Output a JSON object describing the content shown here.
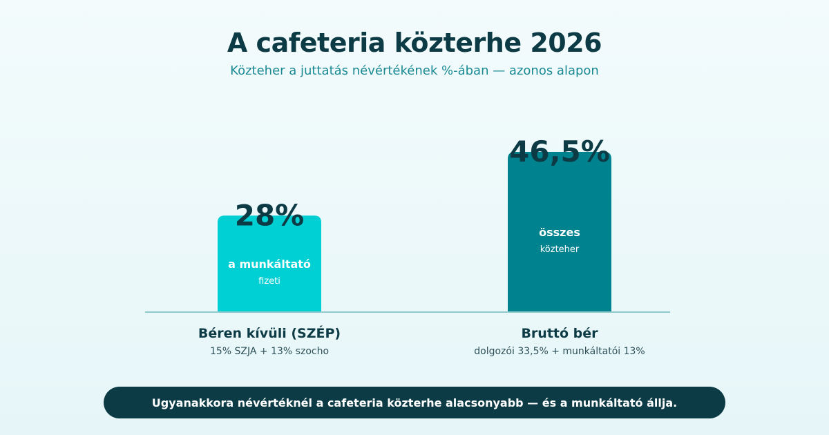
{
  "chart_data": {
    "type": "bar",
    "title": "A cafeteria közterhe 2026",
    "subtitle": "Közteher a juttatás névértékének %-ában — azonos alapon",
    "categories": [
      "Béren kívüli (SZÉP)",
      "Bruttó bér"
    ],
    "category_notes": [
      "15% SZJA + 13% szocho",
      "dolgozói 33,5% + munkáltatói 13%"
    ],
    "values": [
      28,
      46.5
    ],
    "value_labels": [
      "28%",
      "46,5%"
    ],
    "bar_inner_labels": [
      {
        "line1": "a munkáltató",
        "line2": "fizeti"
      },
      {
        "line1": "összes",
        "line2": "közteher"
      }
    ],
    "colors": [
      "#00d0d4",
      "#00838f"
    ],
    "ylim": [
      0,
      50
    ],
    "grid": false,
    "legend": "none"
  },
  "footer": {
    "text": "Ugyanakkora névértéknél a cafeteria közterhe alacsonyabb — és a munkáltató állja."
  }
}
